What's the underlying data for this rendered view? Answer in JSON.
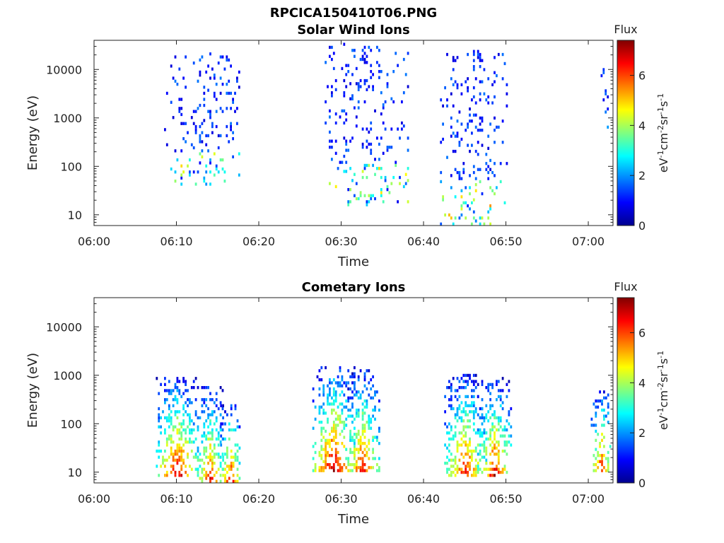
{
  "figure_title": "RPCICA150410T06.PNG",
  "chart_data": [
    {
      "type": "heatmap",
      "title": "Solar Wind Ions",
      "xlabel": "Time",
      "ylabel": "Energy (eV)",
      "y_scale": "log",
      "ylim": [
        6,
        40000
      ],
      "x_tick_labels": [
        "06:00",
        "06:10",
        "06:20",
        "06:30",
        "06:40",
        "06:50",
        "07:00"
      ],
      "y_tick_labels": [
        "10",
        "100",
        "1000",
        "10000"
      ],
      "colorbar": {
        "title": "Flux",
        "label": "eV-1cm-2sr-1s-1",
        "range": [
          0,
          7.4
        ],
        "ticks": [
          "0",
          "2",
          "4",
          "6"
        ]
      },
      "bursts": [
        {
          "center": "06:13",
          "spread_min": 4.5,
          "energy_range": [
            40,
            20000
          ],
          "peak_flux": 4.5
        },
        {
          "center": "06:33",
          "spread_min": 5,
          "energy_range": [
            15,
            35000
          ],
          "peak_flux": 4.5
        },
        {
          "center": "06:46",
          "spread_min": 4,
          "energy_range": [
            6,
            25000
          ],
          "peak_flux": 5
        },
        {
          "center": "07:02",
          "spread_min": 0.5,
          "energy_range": [
            600,
            15000
          ],
          "peak_flux": 3
        }
      ]
    },
    {
      "type": "heatmap",
      "title": "Cometary Ions",
      "xlabel": "Time",
      "ylabel": "Energy (eV)",
      "y_scale": "log",
      "ylim": [
        6,
        40000
      ],
      "x_tick_labels": [
        "06:00",
        "06:10",
        "06:20",
        "06:30",
        "06:40",
        "06:50",
        "07:00"
      ],
      "y_tick_labels": [
        "10",
        "100",
        "1000",
        "10000"
      ],
      "colorbar": {
        "title": "Flux",
        "label": "eV-1cm-2sr-1s-1",
        "range": [
          0,
          7.4
        ],
        "ticks": [
          "0",
          "2",
          "4",
          "6"
        ]
      },
      "bursts": [
        {
          "center": "06:10",
          "spread_min": 2.5,
          "energy_range": [
            8,
            800
          ],
          "peak_flux": 7
        },
        {
          "center": "06:14",
          "spread_min": 1.5,
          "energy_range": [
            6,
            600
          ],
          "peak_flux": 6.5
        },
        {
          "center": "06:16.5",
          "spread_min": 1.2,
          "energy_range": [
            6,
            250
          ],
          "peak_flux": 6.8
        },
        {
          "center": "06:29",
          "spread_min": 2.5,
          "energy_range": [
            10,
            1500
          ],
          "peak_flux": 7.2
        },
        {
          "center": "06:32.5",
          "spread_min": 2,
          "energy_range": [
            10,
            1200
          ],
          "peak_flux": 6.5
        },
        {
          "center": "06:45",
          "spread_min": 2.5,
          "energy_range": [
            8,
            1000
          ],
          "peak_flux": 6.5
        },
        {
          "center": "06:48.5",
          "spread_min": 2,
          "energy_range": [
            8,
            800
          ],
          "peak_flux": 6.8
        },
        {
          "center": "07:01.5",
          "spread_min": 1.2,
          "energy_range": [
            10,
            500
          ],
          "peak_flux": 6.5
        }
      ]
    }
  ]
}
